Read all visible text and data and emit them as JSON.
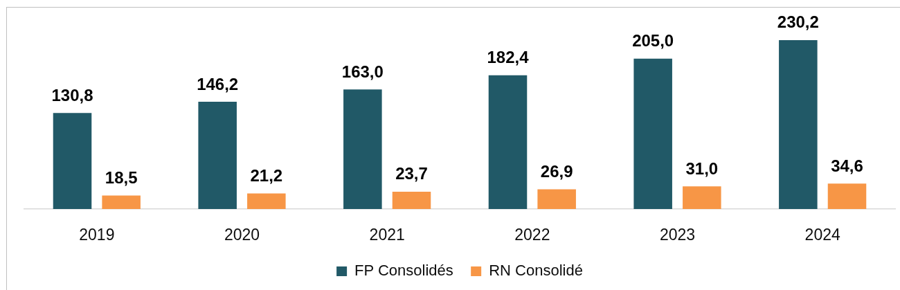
{
  "chart_data": {
    "type": "bar",
    "categories": [
      "2019",
      "2020",
      "2021",
      "2022",
      "2023",
      "2024"
    ],
    "series": [
      {
        "name": "FP Consolidés",
        "color": "#215967",
        "values": [
          130.8,
          146.2,
          163.0,
          182.4,
          205.0,
          230.2
        ],
        "value_labels": [
          "130,8",
          "146,2",
          "163,0",
          "182,4",
          "205,0",
          "230,2"
        ]
      },
      {
        "name": "RN Consolidé",
        "color": "#f79646",
        "values": [
          18.5,
          21.2,
          23.7,
          26.9,
          31.0,
          34.6
        ],
        "value_labels": [
          "18,5",
          "21,2",
          "23,7",
          "26,9",
          "31,0",
          "34,6"
        ]
      }
    ],
    "tick_labels": "x",
    "legend": "bottom"
  }
}
